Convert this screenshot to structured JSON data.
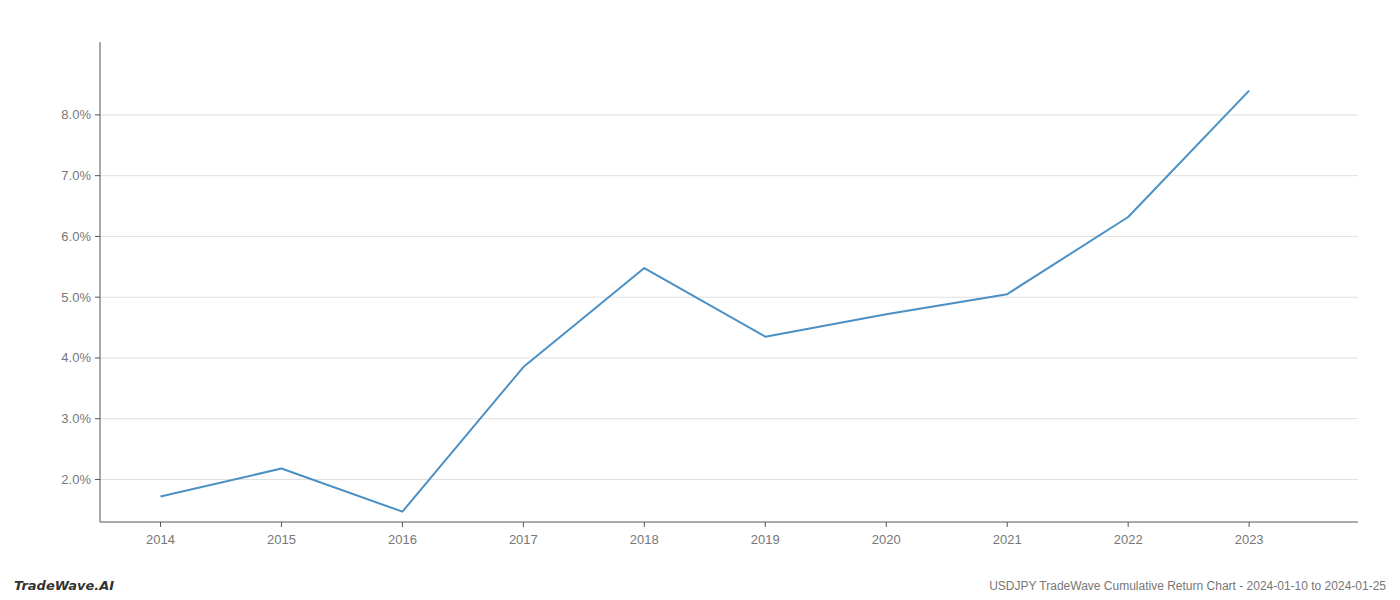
{
  "chart_data": {
    "type": "line",
    "title": "USDJPY TradeWave Cumulative Return Chart - 2024-01-10 to 2024-01-25",
    "annotations": [
      "TradeWave.AI"
    ],
    "x": [
      2014,
      2015,
      2016,
      2017,
      2018,
      2019,
      2020,
      2021,
      2022,
      2023
    ],
    "values": [
      1.72,
      2.18,
      1.47,
      3.85,
      5.48,
      4.35,
      4.72,
      5.05,
      6.32,
      8.4
    ],
    "color": "#4a90c4",
    "xlim": [
      2013.5,
      2023.9
    ],
    "ylim": [
      1.3,
      9.2
    ],
    "xticks": [
      2014,
      2015,
      2016,
      2017,
      2018,
      2019,
      2020,
      2021,
      2022,
      2023
    ],
    "yticks": [
      {
        "value": 2.0,
        "label": "2.0%"
      },
      {
        "value": 3.0,
        "label": "3.0%"
      },
      {
        "value": 4.0,
        "label": "4.0%"
      },
      {
        "value": 5.0,
        "label": "5.0%"
      },
      {
        "value": 6.0,
        "label": "6.0%"
      },
      {
        "value": 7.0,
        "label": "7.0%"
      },
      {
        "value": 8.0,
        "label": "8.0%"
      }
    ],
    "grid": true
  }
}
